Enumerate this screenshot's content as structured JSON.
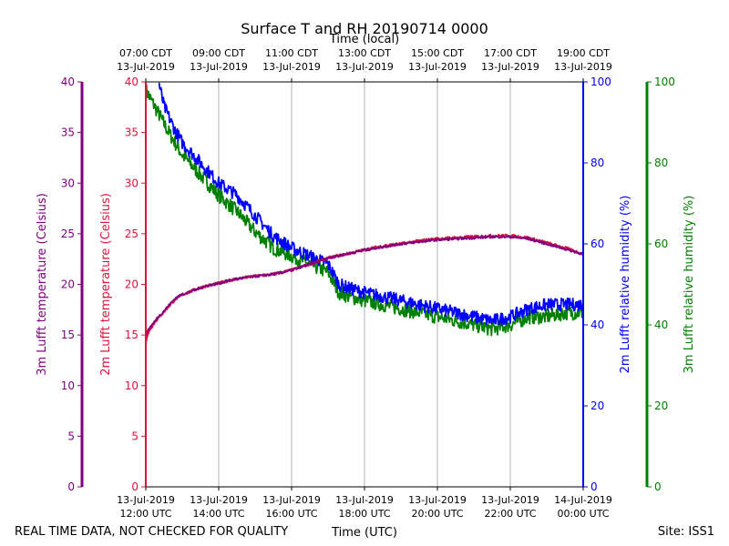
{
  "chart_data": {
    "type": "line",
    "title": "Surface T and RH 20190714 0000",
    "top_axis_label": "Time (local)",
    "bottom_axis_label": "Time (UTC)",
    "footer_left": "REAL TIME DATA, NOT CHECKED FOR QUALITY",
    "footer_right": "Site: ISS1",
    "x_range_hours": [
      12,
      24
    ],
    "x_ticks_utc": [
      {
        "hour": 12,
        "line1": "13-Jul-2019",
        "line2": "12:00 UTC"
      },
      {
        "hour": 14,
        "line1": "13-Jul-2019",
        "line2": "14:00 UTC"
      },
      {
        "hour": 16,
        "line1": "13-Jul-2019",
        "line2": "16:00 UTC"
      },
      {
        "hour": 18,
        "line1": "13-Jul-2019",
        "line2": "18:00 UTC"
      },
      {
        "hour": 20,
        "line1": "13-Jul-2019",
        "line2": "20:00 UTC"
      },
      {
        "hour": 22,
        "line1": "13-Jul-2019",
        "line2": "22:00 UTC"
      },
      {
        "hour": 24,
        "line1": "14-Jul-2019",
        "line2": "00:00 UTC"
      }
    ],
    "x_ticks_local": [
      {
        "hour": 12,
        "line1": "07:00 CDT",
        "line2": "13-Jul-2019"
      },
      {
        "hour": 14,
        "line1": "09:00 CDT",
        "line2": "13-Jul-2019"
      },
      {
        "hour": 16,
        "line1": "11:00 CDT",
        "line2": "13-Jul-2019"
      },
      {
        "hour": 18,
        "line1": "13:00 CDT",
        "line2": "13-Jul-2019"
      },
      {
        "hour": 20,
        "line1": "15:00 CDT",
        "line2": "13-Jul-2019"
      },
      {
        "hour": 22,
        "line1": "17:00 CDT",
        "line2": "13-Jul-2019"
      },
      {
        "hour": 24,
        "line1": "19:00 CDT",
        "line2": "13-Jul-2019"
      }
    ],
    "axes": {
      "t3m": {
        "label": "3m Lufft temperature (Celsius)",
        "range": [
          0,
          40
        ],
        "ticks": [
          "0",
          "5",
          "10",
          "15",
          "20",
          "25",
          "30",
          "35",
          "40"
        ],
        "color": "#800080"
      },
      "t2m": {
        "label": "2m Lufft temperature (Celsius)",
        "range": [
          0,
          40
        ],
        "ticks": [
          "0",
          "5",
          "10",
          "15",
          "20",
          "25",
          "30",
          "35",
          "40"
        ],
        "color": "#dc143c"
      },
      "rh2m": {
        "label": "2m Lufft relative humidity (%)",
        "range": [
          0,
          100
        ],
        "ticks": [
          "0",
          "20",
          "40",
          "60",
          "80",
          "100"
        ],
        "color": "#0000ff"
      },
      "rh3m": {
        "label": "3m Lufft relative humidity (%)",
        "range": [
          0,
          100
        ],
        "ticks": [
          "0",
          "20",
          "40",
          "60",
          "80",
          "100"
        ],
        "color": "#008000"
      }
    },
    "series": [
      {
        "name": "2m Lufft temperature",
        "axis": "t2m",
        "color": "#dc143c",
        "noise": 0.15,
        "points": [
          [
            12.0,
            14.3
          ],
          [
            12.1,
            15.5
          ],
          [
            12.3,
            16.5
          ],
          [
            12.5,
            17.3
          ],
          [
            12.8,
            18.5
          ],
          [
            13.0,
            19.0
          ],
          [
            13.3,
            19.4
          ],
          [
            13.6,
            19.8
          ],
          [
            14.0,
            20.1
          ],
          [
            14.3,
            20.4
          ],
          [
            14.6,
            20.6
          ],
          [
            15.0,
            20.8
          ],
          [
            15.5,
            21.0
          ],
          [
            16.0,
            21.4
          ],
          [
            16.5,
            22.0
          ],
          [
            17.0,
            22.6
          ],
          [
            17.5,
            23.0
          ],
          [
            18.0,
            23.4
          ],
          [
            18.5,
            23.8
          ],
          [
            19.0,
            24.0
          ],
          [
            19.5,
            24.3
          ],
          [
            20.0,
            24.5
          ],
          [
            20.5,
            24.6
          ],
          [
            21.0,
            24.7
          ],
          [
            21.5,
            24.8
          ],
          [
            22.0,
            24.8
          ],
          [
            22.5,
            24.6
          ],
          [
            23.0,
            24.1
          ],
          [
            23.5,
            23.6
          ],
          [
            24.0,
            23.0
          ]
        ]
      },
      {
        "name": "3m Lufft temperature",
        "axis": "t3m",
        "color": "#800080",
        "noise": 0.12,
        "points": [
          [
            12.0,
            15.0
          ],
          [
            12.1,
            15.7
          ],
          [
            12.3,
            16.6
          ],
          [
            12.5,
            17.4
          ],
          [
            12.8,
            18.6
          ],
          [
            13.0,
            19.0
          ],
          [
            13.3,
            19.4
          ],
          [
            13.6,
            19.8
          ],
          [
            14.0,
            20.1
          ],
          [
            14.3,
            20.4
          ],
          [
            14.6,
            20.6
          ],
          [
            15.0,
            20.8
          ],
          [
            15.5,
            21.0
          ],
          [
            16.0,
            21.4
          ],
          [
            16.5,
            22.0
          ],
          [
            17.0,
            22.6
          ],
          [
            17.5,
            23.0
          ],
          [
            18.0,
            23.4
          ],
          [
            18.5,
            23.7
          ],
          [
            19.0,
            24.0
          ],
          [
            19.5,
            24.2
          ],
          [
            20.0,
            24.4
          ],
          [
            20.5,
            24.5
          ],
          [
            21.0,
            24.6
          ],
          [
            21.5,
            24.7
          ],
          [
            22.0,
            24.7
          ],
          [
            22.5,
            24.5
          ],
          [
            23.0,
            24.0
          ],
          [
            23.5,
            23.5
          ],
          [
            24.0,
            23.0
          ]
        ]
      },
      {
        "name": "2m Lufft relative humidity",
        "axis": "rh2m",
        "color": "#0000ff",
        "noise": 1.6,
        "points": [
          [
            12.35,
            100
          ],
          [
            12.5,
            94
          ],
          [
            12.8,
            88
          ],
          [
            13.0,
            85
          ],
          [
            13.5,
            80
          ],
          [
            14.0,
            75
          ],
          [
            14.5,
            72
          ],
          [
            15.0,
            67
          ],
          [
            15.5,
            62
          ],
          [
            16.0,
            59
          ],
          [
            16.5,
            57
          ],
          [
            17.0,
            55
          ],
          [
            17.3,
            50
          ],
          [
            17.6,
            49
          ],
          [
            18.0,
            48
          ],
          [
            18.5,
            47
          ],
          [
            19.0,
            46
          ],
          [
            19.5,
            45
          ],
          [
            20.0,
            44
          ],
          [
            20.5,
            43
          ],
          [
            21.0,
            42
          ],
          [
            21.5,
            41
          ],
          [
            22.0,
            42
          ],
          [
            22.5,
            44
          ],
          [
            23.0,
            45
          ],
          [
            23.5,
            45
          ],
          [
            24.0,
            45
          ]
        ]
      },
      {
        "name": "3m Lufft relative humidity",
        "axis": "rh3m",
        "color": "#008000",
        "noise": 1.8,
        "points": [
          [
            12.0,
            98
          ],
          [
            12.3,
            93
          ],
          [
            12.6,
            88
          ],
          [
            13.0,
            82
          ],
          [
            13.5,
            77
          ],
          [
            14.0,
            72
          ],
          [
            14.5,
            68
          ],
          [
            15.0,
            63
          ],
          [
            15.5,
            59
          ],
          [
            16.0,
            57
          ],
          [
            16.5,
            55
          ],
          [
            17.0,
            53
          ],
          [
            17.3,
            48
          ],
          [
            17.6,
            47
          ],
          [
            18.0,
            46
          ],
          [
            18.5,
            45
          ],
          [
            19.0,
            44
          ],
          [
            19.5,
            43
          ],
          [
            20.0,
            42
          ],
          [
            20.5,
            41
          ],
          [
            21.0,
            40
          ],
          [
            21.5,
            39
          ],
          [
            22.0,
            40
          ],
          [
            22.5,
            42
          ],
          [
            23.0,
            42
          ],
          [
            23.5,
            43
          ],
          [
            24.0,
            43
          ]
        ]
      }
    ]
  }
}
